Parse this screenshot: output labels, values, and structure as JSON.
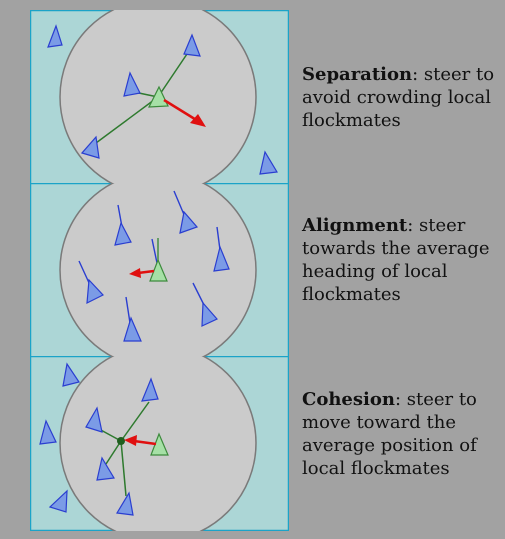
{
  "colors": {
    "background": "#a2a2a2",
    "panel_fill": "#acd6d6",
    "panel_border": "#1ba3c8",
    "neighborhood_fill": "#cbcbcb",
    "neighborhood_stroke": "#7a7a7a",
    "boid_fill": "#7b9be6",
    "boid_stroke": "#2a3ed0",
    "focus_boid_fill": "#a6e0a6",
    "focus_boid_stroke": "#3c8a3c",
    "link_color": "#2e7a2e",
    "steer_arrow": "#e01010"
  },
  "icons": {
    "boid": "triangle-icon",
    "steer": "arrow-icon",
    "centroid": "dot-icon"
  },
  "panels": [
    {
      "id": "separation",
      "term": "Separation",
      "description": ": steer to avoid crowding local flockmates"
    },
    {
      "id": "alignment",
      "term": "Alignment",
      "description": ": steer towards the average heading of local flockmates"
    },
    {
      "id": "cohesion",
      "term": "Cohesion",
      "description": ": steer to move toward the average position of local flockmates"
    }
  ]
}
